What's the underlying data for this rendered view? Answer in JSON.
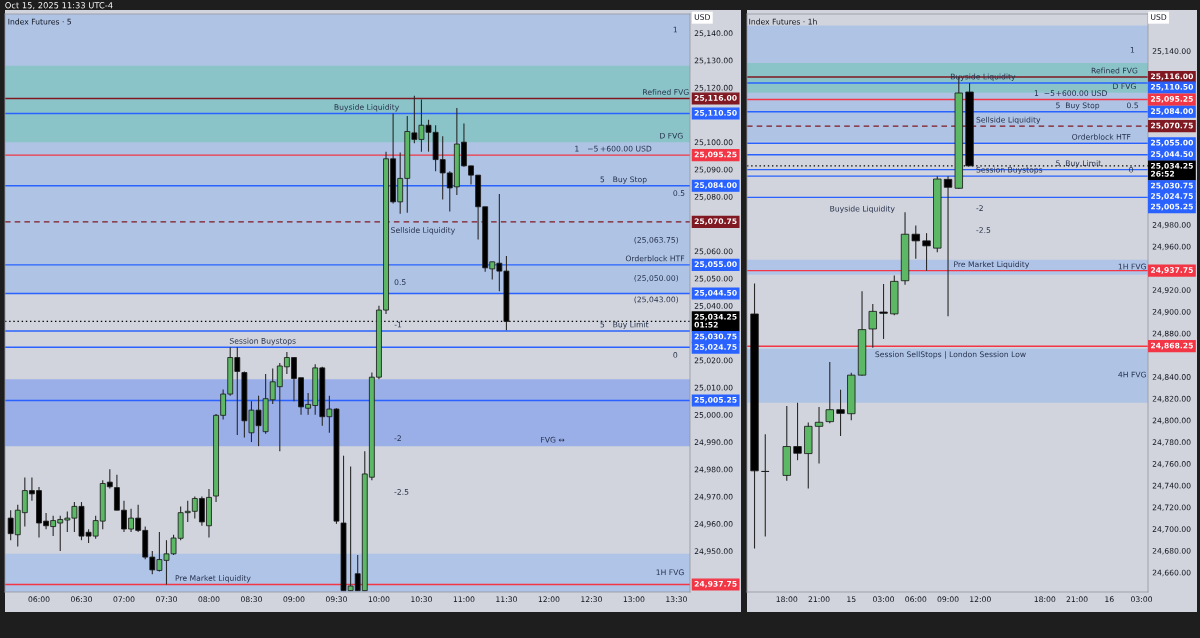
{
  "chart_data": [
    {
      "type": "candlestick",
      "title": "Oct 15, 2025 11:33 UTC-4",
      "subtitle": "Index Futures · 5",
      "ylabel": "USD",
      "x": [
        5.6667,
        5.75,
        5.8333,
        5.9167,
        6,
        6.0833,
        6.1667,
        6.25,
        6.3333,
        6.4167,
        6.5,
        6.5833,
        6.6667,
        6.75,
        6.8333,
        6.9167,
        7,
        7.0833,
        7.1667,
        7.25,
        7.3333,
        7.4167,
        7.5,
        7.5833,
        7.6667,
        7.75,
        7.8333,
        7.9167,
        8,
        8.0833,
        8.1667,
        8.25,
        8.3333,
        8.4167,
        8.5,
        8.5833,
        8.6667,
        8.75,
        8.8333,
        8.9167,
        9,
        9.0833,
        9.1667,
        9.25,
        9.3333,
        9.4167,
        9.5,
        9.5833,
        9.6667,
        9.75,
        9.8333,
        9.9167,
        10,
        10.0833,
        10.1667,
        10.25,
        10.3333,
        10.4167,
        10.5,
        10.5833,
        10.6667,
        10.75,
        10.8333,
        10.9167,
        11,
        11.0833,
        11.1667,
        11.25,
        11.3333,
        11.4167,
        11.5
      ],
      "ohlc": [
        [
          24962.1,
          24965,
          24954,
          24956.4
        ],
        [
          24956,
          24967,
          24951.7,
          24965
        ],
        [
          24964.1,
          24977,
          24959,
          24972.2
        ],
        [
          24972.2,
          24977,
          24968.5,
          24971
        ],
        [
          24972.2,
          24973.5,
          24955,
          24960.3
        ],
        [
          24961,
          24964,
          24958,
          24959.3
        ],
        [
          24959,
          24963,
          24955.5,
          24961.2
        ],
        [
          24960.3,
          24963,
          24950,
          24961.6
        ],
        [
          24961.4,
          24964.5,
          24957,
          24962.1
        ],
        [
          24962.1,
          24968,
          24957,
          24966.4
        ],
        [
          24966.4,
          24968,
          24954,
          24955.5
        ],
        [
          24956.9,
          24958,
          24953,
          24955.5
        ],
        [
          24955.5,
          24963,
          24954.5,
          24961.2
        ],
        [
          24961,
          24976,
          24958,
          24974.8
        ],
        [
          24975.3,
          24980,
          24973,
          24973.6
        ],
        [
          24973.3,
          24978,
          24965,
          24965
        ],
        [
          24965,
          24968.5,
          24957,
          24958.1
        ],
        [
          24958.1,
          24965.5,
          24957,
          24962.1
        ],
        [
          24962.1,
          24967,
          24957,
          24957.6
        ],
        [
          24957.6,
          24959,
          24947,
          24947.8
        ],
        [
          24947.8,
          24950,
          24941.5,
          24943.1
        ],
        [
          24942.9,
          24957,
          24942.5,
          24946.9
        ],
        [
          24946.6,
          24954,
          24937.75,
          24949
        ],
        [
          24949,
          24956,
          24948.6,
          24954.8
        ],
        [
          24954.7,
          24966.4,
          24954,
          24964.1
        ],
        [
          24964.1,
          24968.5,
          24960.7,
          24964.6
        ],
        [
          24964.6,
          24970,
          24962,
          24969.3
        ],
        [
          24969.3,
          24970,
          24959.3,
          24960.7
        ],
        [
          24959.3,
          24972.8,
          24955,
          24969.7
        ],
        [
          24970.2,
          25000.3,
          24968,
          24999.8
        ],
        [
          24999.8,
          25009.3,
          24998.3,
          25007.6
        ],
        [
          25007.6,
          25024.75,
          25007,
          25021
        ],
        [
          25021,
          25024.75,
          24992.6,
          25015.9
        ],
        [
          25015.5,
          25015.9,
          24991.7,
          24997.8
        ],
        [
          24993.4,
          25005,
          24990,
          25001.7
        ],
        [
          25001.7,
          25007,
          24988.5,
          24996
        ],
        [
          24993.8,
          25015,
          24993,
          25005.9
        ],
        [
          25005.5,
          25017,
          25004,
          25012.1
        ],
        [
          25010.3,
          25019,
          24986.6,
          25017.9
        ],
        [
          25017.6,
          25023,
          25015,
          25021
        ],
        [
          25021,
          25021,
          25005,
          25013.3
        ],
        [
          25013.6,
          25013.6,
          25000,
          25002.9
        ],
        [
          25002.4,
          25008,
          25000,
          25003.8
        ],
        [
          25003.4,
          25018.5,
          25000,
          25017.2
        ],
        [
          25017.2,
          25017.6,
          24996,
          24999.3
        ],
        [
          24999.3,
          25007,
          24993.4,
          25002.1
        ],
        [
          25002.1,
          25002.4,
          24960,
          24961
        ],
        [
          24960.3,
          24985,
          24935.5,
          24935.5
        ],
        [
          24935.5,
          24981,
          24935.5,
          24937.2
        ],
        [
          24941.7,
          24948.6,
          24935.5,
          24935.5
        ],
        [
          24935.5,
          24986.6,
          24935.5,
          24978.3
        ],
        [
          24977.1,
          25015.5,
          24976,
          25013.8
        ],
        [
          25013.8,
          25040,
          25013,
          25038.4
        ],
        [
          25038.4,
          25096.5,
          25037,
          25093.9
        ],
        [
          25093.9,
          25110.5,
          25077.5,
          25078.1
        ],
        [
          25078.1,
          25096.2,
          25073.7,
          25086.7
        ],
        [
          25086.7,
          25109.6,
          25074.1,
          25103.9
        ],
        [
          25103.4,
          25117,
          25099.6,
          25101
        ],
        [
          25101,
          25115.6,
          25096.5,
          25106.2
        ],
        [
          25106.2,
          25108.2,
          25096.5,
          25103.6
        ],
        [
          25103.6,
          25106.2,
          25089.3,
          25093.6
        ],
        [
          25093.6,
          25102.2,
          25079,
          25088.7
        ],
        [
          25088.7,
          25089.3,
          25074.6,
          25083.2
        ],
        [
          25083.6,
          25112.5,
          25080.6,
          25099.3
        ],
        [
          25100,
          25106.8,
          25091,
          25091.3
        ],
        [
          25091.3,
          25091.3,
          25084.5,
          25087.9
        ],
        [
          25087.9,
          25087.9,
          25064.3,
          25076.3
        ],
        [
          25076.3,
          25076.3,
          25052.5,
          25053.9
        ],
        [
          25053.5,
          25056.1,
          25049.6,
          25056.1
        ],
        [
          25055.6,
          25081,
          25045.3,
          25052.7
        ],
        [
          25052.7,
          25058.2,
          25031,
          25034.25
        ]
      ],
      "xlim": [
        5.6,
        13.66
      ],
      "ylim": [
        24935,
        25147
      ],
      "xticks": [
        {
          "value": 6,
          "label": "06:00"
        },
        {
          "value": 6.5,
          "label": "06:30"
        },
        {
          "value": 7,
          "label": "07:00"
        },
        {
          "value": 7.5,
          "label": "07:30"
        },
        {
          "value": 8,
          "label": "08:00"
        },
        {
          "value": 8.5,
          "label": "08:30"
        },
        {
          "value": 9,
          "label": "09:00"
        },
        {
          "value": 9.5,
          "label": "09:30"
        },
        {
          "value": 10,
          "label": "10:00"
        },
        {
          "value": 10.5,
          "label": "10:30"
        },
        {
          "value": 11,
          "label": "11:00"
        },
        {
          "value": 11.5,
          "label": "11:30"
        },
        {
          "value": 12,
          "label": "12:00"
        },
        {
          "value": 12.5,
          "label": "12:30"
        },
        {
          "value": 13,
          "label": "13:00"
        },
        {
          "value": 13.5,
          "label": "13:30"
        }
      ],
      "yticks": [
        {
          "value": 25140,
          "label": "25,140.00"
        },
        {
          "value": 25130,
          "label": "25,130.00"
        },
        {
          "value": 25120,
          "label": "25,120.00"
        },
        {
          "value": 25100,
          "label": "25,100.00"
        },
        {
          "value": 25090,
          "label": "25,090.00"
        },
        {
          "value": 25080,
          "label": "25,080.00"
        },
        {
          "value": 25060,
          "label": "25,060.00"
        },
        {
          "value": 25050,
          "label": "25,050.00"
        },
        {
          "value": 25040,
          "label": "25,040.00"
        },
        {
          "value": 25020,
          "label": "25,020.00"
        },
        {
          "value": 25010,
          "label": "25,010.00"
        },
        {
          "value": 25000,
          "label": "25,000.00"
        },
        {
          "value": 24990,
          "label": "24,990.00"
        },
        {
          "value": 24980,
          "label": "24,980.00"
        },
        {
          "value": 24970,
          "label": "24,970.00"
        },
        {
          "value": 24960,
          "label": "24,960.00"
        },
        {
          "value": 24950,
          "label": "24,950.00"
        }
      ],
      "bands": [
        {
          "axis": "y",
          "from": 25044.5,
          "to": 25147,
          "color": "#afc4e5"
        },
        {
          "axis": "y",
          "from": 25100,
          "to": 25128,
          "color": "#8ac4c8"
        },
        {
          "axis": "y",
          "from": 24988.5,
          "to": 25013,
          "color": "#9aaee8"
        },
        {
          "axis": "y",
          "from": 24935,
          "to": 24949,
          "color": "#b0c4e8"
        }
      ],
      "ref_lines": [
        {
          "axis": "y",
          "value": 25116,
          "label": "25,116.00",
          "color": "#801922",
          "line_style": "solid"
        },
        {
          "axis": "y",
          "value": 25110.5,
          "label": "25,110.50",
          "color": "#2962ff",
          "line_style": "solid"
        },
        {
          "axis": "y",
          "value": 25095.25,
          "label": "25,095.25",
          "color": "#f23645",
          "line_style": "solid"
        },
        {
          "axis": "y",
          "value": 25084,
          "label": "25,084.00",
          "color": "#2962ff",
          "line_style": "solid"
        },
        {
          "axis": "y",
          "value": 25070.75,
          "label": "25,070.75",
          "color": "#801922",
          "line_style": "dashed"
        },
        {
          "axis": "y",
          "value": 25055,
          "label": "25,055.00",
          "color": "#2962ff",
          "line_style": "solid"
        },
        {
          "axis": "y",
          "value": 25044.5,
          "label": "25,044.50",
          "color": "#2962ff",
          "line_style": "solid"
        },
        {
          "axis": "y",
          "value": 25034.25,
          "label": "25,034.25\n01:52",
          "color": "#000000",
          "line_style": "dotted"
        },
        {
          "axis": "y",
          "value": 25030.75,
          "label": "25,030.75",
          "color": "#2962ff",
          "line_style": "solid"
        },
        {
          "axis": "y",
          "value": 25024.75,
          "label": "25,024.75",
          "color": "#2962ff",
          "line_style": "solid"
        },
        {
          "axis": "y",
          "value": 25005.25,
          "label": "25,005.25",
          "color": "#2962ff",
          "line_style": "solid"
        },
        {
          "axis": "y",
          "value": 24937.75,
          "label": "24,937.75",
          "color": "#f23645",
          "line_style": "solid"
        }
      ],
      "annotations": [
        {
          "text": "Buyside Liquidity",
          "x": 9.47,
          "y": 25110.5
        },
        {
          "text": "Refined FVG",
          "x": 13.1,
          "y": 25116
        },
        {
          "text": "D FVG",
          "x": 13.3,
          "y": 25100
        },
        "1",
        "0.5",
        "Sellside Liquidity",
        "(25,063.75)",
        {
          "text": "Orderblock HTF",
          "x": 12.9,
          "y": 25055
        },
        "(25,050.00)",
        "(25,043.00)",
        "0.5",
        {
          "text": "-1",
          "x": 10.18,
          "y": 25030.75
        },
        "0",
        {
          "text": "Session Buystops",
          "x": 8.24,
          "y": 25024.75
        },
        {
          "text": "FVG ↔",
          "x": 11.9,
          "y": 24988.5
        },
        "-2",
        "-2.5",
        {
          "text": "Pre Market Liquidity",
          "x": 7.6,
          "y": 24937.75
        },
        "1H FVG",
        {
          "text": "1",
          "x": 12.3,
          "y": 25095.25
        },
        {
          "text": "−5",
          "x": 12.45,
          "y": 25095.25
        },
        {
          "text": "+600.00 USD",
          "x": 12.6,
          "y": 25095.25
        },
        {
          "text": "5",
          "x": 12.6,
          "y": 25084
        },
        {
          "text": "Buy Stop",
          "x": 12.75,
          "y": 25084
        },
        {
          "text": "5",
          "x": 12.6,
          "y": 25030.75
        },
        {
          "text": "Buy Limit",
          "x": 12.75,
          "y": 25030.75
        }
      ]
    },
    {
      "type": "candlestick",
      "subtitle": "Index Futures · 1h",
      "ylabel": "USD",
      "x": [
        "2025-10-14T15:00",
        "2025-10-14T16:00",
        "2025-10-14T18:00",
        "2025-10-14T19:00",
        "2025-10-14T20:00",
        "2025-10-14T21:00",
        "2025-10-14T22:00",
        "2025-10-14T23:00",
        "2025-10-15T00:00",
        "2025-10-15T01:00",
        "2025-10-15T02:00",
        "2025-10-15T03:00",
        "2025-10-15T04:00",
        "2025-10-15T05:00",
        "2025-10-15T06:00",
        "2025-10-15T07:00",
        "2025-10-15T08:00",
        "2025-10-15T09:00",
        "2025-10-15T10:00",
        "2025-10-15T11:00"
      ],
      "ohlc": [
        [
          24897.9,
          24926,
          24682,
          24753.5
        ],
        [
          24753,
          24787.2,
          24693,
          24752.9
        ],
        [
          24749.3,
          24813.2,
          24744.4,
          24775.9
        ],
        [
          24775.9,
          24816.2,
          24763.3,
          24769.7
        ],
        [
          24769.4,
          24797.9,
          24737.3,
          24794.5
        ],
        [
          24794.5,
          24812.3,
          24760.3,
          24798.2
        ],
        [
          24798.8,
          24853.8,
          24797.3,
          24809.8
        ],
        [
          24809.8,
          24828.2,
          24785.6,
          24806.4
        ],
        [
          24806.1,
          24843.7,
          24800,
          24841.6
        ],
        [
          24841.6,
          24918.7,
          24841,
          24883.5
        ],
        [
          24884.1,
          24907,
          24866.7,
          24900.3
        ],
        [
          24899.7,
          24925.5,
          24874.9,
          24898.5
        ],
        [
          24898,
          24933.4,
          24896.7,
          24927.9
        ],
        [
          24928.5,
          24991.5,
          24924.9,
          24971.3
        ],
        [
          24971.3,
          24979.3,
          24948.7,
          24965.2
        ],
        [
          24965.2,
          24972.3,
          24937.75,
          24960.6
        ],
        [
          24958.5,
          25024.75,
          24954.8,
          25022.1
        ],
        [
          25021.8,
          25024.75,
          24895.8,
          25014.5
        ],
        [
          25013.6,
          25116,
          25013,
          25101.3
        ],
        [
          25102.2,
          25110.5,
          25034.25,
          25034.25
        ]
      ],
      "xlim": [
        "2025-10-14T14:18",
        "2025-10-16T03:36"
      ],
      "ylim": [
        24642,
        25174
      ],
      "xticks": [
        {
          "value": "2025-10-14T18:00",
          "label": "18:00"
        },
        {
          "value": "2025-10-14T21:00",
          "label": "21:00"
        },
        {
          "value": "2025-10-15T00:00",
          "label": "15"
        },
        {
          "value": "2025-10-15T03:00",
          "label": "03:00"
        },
        {
          "value": "2025-10-15T06:00",
          "label": "06:00"
        },
        {
          "value": "2025-10-15T09:00",
          "label": "09:00"
        },
        {
          "value": "2025-10-15T12:00",
          "label": "12:00"
        },
        {
          "value": "2025-10-15T18:00",
          "label": "18:00"
        },
        {
          "value": "2025-10-15T21:00",
          "label": "21:00"
        },
        {
          "value": "2025-10-16T00:00",
          "label": "16"
        },
        {
          "value": "2025-10-16T03:00",
          "label": "03:00"
        }
      ],
      "yticks": [
        {
          "value": 25140,
          "label": "25,140.00"
        },
        {
          "value": 24980,
          "label": "24,980.00"
        },
        {
          "value": 24960,
          "label": "24,960.00"
        },
        {
          "value": 24920,
          "label": "24,920.00"
        },
        {
          "value": 24900,
          "label": "24,900.00"
        },
        {
          "value": 24880,
          "label": "24,880.00"
        },
        {
          "value": 24840,
          "label": "24,840.00"
        },
        {
          "value": 24820,
          "label": "24,820.00"
        },
        {
          "value": 24800,
          "label": "24,800.00"
        },
        {
          "value": 24780,
          "label": "24,780.00"
        },
        {
          "value": 24760,
          "label": "24,760.00"
        },
        {
          "value": 24740,
          "label": "24,740.00"
        },
        {
          "value": 24720,
          "label": "24,720.00"
        },
        {
          "value": 24700,
          "label": "24,700.00"
        },
        {
          "value": 24680,
          "label": "24,680.00"
        },
        {
          "value": 24660,
          "label": "24,660.00"
        }
      ],
      "bands": [
        {
          "axis": "y",
          "from": 25056.4,
          "to": 25163.4,
          "color": "#afc4e5"
        },
        {
          "axis": "y",
          "from": 25101.6,
          "to": 25129,
          "color": "#8ac4c8"
        },
        {
          "axis": "y",
          "from": 24934,
          "to": 24947.8,
          "color": "#b0c4e8"
        },
        {
          "axis": "y",
          "from": 24816.2,
          "to": 24865.8,
          "color": "#afc4e5"
        }
      ],
      "ref_lines": [
        {
          "axis": "y",
          "value": 25116,
          "label": "25,116.00",
          "color": "#801922",
          "line_style": "solid"
        },
        {
          "axis": "y",
          "value": 25110.5,
          "label": "25,110.50",
          "color": "#2962ff",
          "line_style": "solid"
        },
        {
          "axis": "y",
          "value": 25095.25,
          "label": "25,095.25",
          "color": "#f23645",
          "line_style": "solid"
        },
        {
          "axis": "y",
          "value": 25084,
          "label": "25,084.00",
          "color": "#2962ff",
          "line_style": "solid"
        },
        {
          "axis": "y",
          "value": 25070.75,
          "label": "25,070.75",
          "color": "#801922",
          "line_style": "dashed"
        },
        {
          "axis": "y",
          "value": 25055,
          "label": "25,055.00",
          "color": "#2962ff",
          "line_style": "solid"
        },
        {
          "axis": "y",
          "value": 25044.5,
          "label": "25,044.50",
          "color": "#2962ff",
          "line_style": "solid"
        },
        {
          "axis": "y",
          "value": 25034.25,
          "label": "25,034.25\n26:52",
          "color": "#000000",
          "line_style": "dotted"
        },
        {
          "axis": "y",
          "value": 25030.75,
          "label": "25,030.75",
          "color": "#2962ff",
          "line_style": "solid"
        },
        {
          "axis": "y",
          "value": 25024.75,
          "label": "25,024.75",
          "color": "#2962ff",
          "line_style": "solid"
        },
        {
          "axis": "y",
          "value": 25005.25,
          "label": "25,005.25",
          "color": "#2962ff",
          "line_style": "solid"
        },
        {
          "axis": "y",
          "value": 24937.75,
          "label": "24,937.75",
          "color": "#f23645",
          "line_style": "solid"
        },
        {
          "axis": "y",
          "value": 24868.25,
          "label": "24,868.25",
          "color": "#f23645",
          "line_style": "solid"
        }
      ],
      "annotations": [
        {
          "text": "Buyside Liquidity",
          "x": "2025-10-15T09:12",
          "y": 25110.5
        },
        {
          "text": "Refined FVG",
          "x": "2025-10-15T22:18",
          "y": 25116
        },
        {
          "text": "D FVG",
          "x": "2025-10-16T00:18",
          "y": 25101.6
        },
        "1",
        {
          "text": "0.5",
          "x": "2025-10-16T01:36",
          "y": 25084
        },
        {
          "text": "Sellside Liquidity",
          "x": "2025-10-15T11:36",
          "y": 25070.75
        },
        {
          "text": "Orderblock HTF",
          "x": "2025-10-15T20:30",
          "y": 25055
        },
        {
          "text": "0",
          "x": "2025-10-16T01:48",
          "y": 25024.75
        },
        {
          "text": "Session Buystops",
          "x": "2025-10-15T11:36",
          "y": 25024.75
        },
        "Buyside Liquidity",
        "-2",
        "-2.5",
        "1H FVG",
        {
          "text": "Pre Market Liquidity",
          "x": "2025-10-15T09:30",
          "y": 24937.75
        },
        "Session SellStops | London Session Low",
        "4H FVG",
        {
          "text": "1",
          "x": "2025-10-15T17:00",
          "y": 25095.25
        },
        {
          "text": "−5",
          "x": "2025-10-15T17:54",
          "y": 25095.25
        },
        {
          "text": "+600.00 USD",
          "x": "2025-10-15T19:00",
          "y": 25095.25
        },
        {
          "text": "5",
          "x": "2025-10-15T19:00",
          "y": 25084
        },
        {
          "text": "Buy Stop",
          "x": "2025-10-15T19:54",
          "y": 25084
        },
        {
          "text": "5",
          "x": "2025-10-15T19:00",
          "y": 25030.75
        },
        {
          "text": "Buy Limit",
          "x": "2025-10-15T19:54",
          "y": 25030.75
        }
      ]
    }
  ]
}
